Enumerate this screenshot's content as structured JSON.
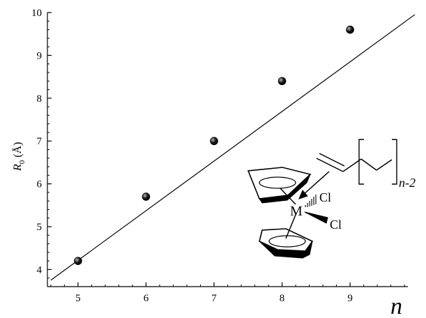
{
  "chart_data": {
    "type": "scatter",
    "x": [
      5,
      6,
      7,
      8,
      9
    ],
    "y": [
      4.2,
      5.7,
      7.0,
      8.4,
      9.6
    ],
    "fit_line": {
      "x": [
        4.6,
        9.95
      ],
      "y": [
        3.75,
        9.95
      ]
    },
    "xlim": [
      4.55,
      9.85
    ],
    "ylim": [
      3.6,
      10.0
    ],
    "x_ticks": [
      "5",
      "6",
      "7",
      "8",
      "9"
    ],
    "y_ticks": [
      "4",
      "5",
      "6",
      "7",
      "8",
      "9",
      "10"
    ],
    "xlabel": "n",
    "ylabel": {
      "main": "R",
      "sub": "0",
      "unit": "(Å)"
    },
    "grid": false,
    "legend": "none"
  },
  "inset": {
    "metal": "M",
    "ligand_top": "Cl",
    "ligand_bottom": "Cl",
    "chain_repeat": "n-2"
  },
  "colors": {
    "ink": "#000000",
    "point": "#1a1a1a"
  }
}
